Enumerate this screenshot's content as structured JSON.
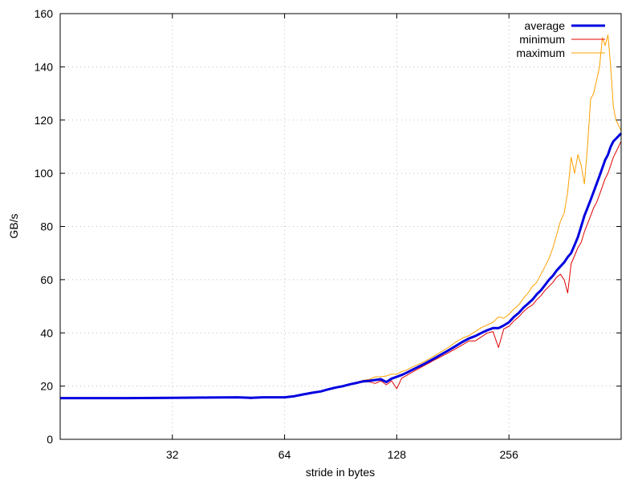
{
  "chart_data": {
    "type": "line",
    "xlabel": "stride in bytes",
    "ylabel": "GB/s",
    "x_scale": "log2",
    "xlim": [
      16,
      512
    ],
    "ylim": [
      0,
      160
    ],
    "x_ticks": [
      32,
      64,
      128,
      256
    ],
    "y_ticks": [
      0,
      20,
      40,
      60,
      80,
      100,
      120,
      140,
      160
    ],
    "grid": true,
    "legend": "top-right",
    "series": [
      {
        "name": "average",
        "color": "#0000e0",
        "line_width": 3,
        "x": [
          16,
          24,
          32,
          40,
          48,
          52,
          56,
          60,
          64,
          68,
          72,
          76,
          80,
          84,
          88,
          92,
          96,
          100,
          104,
          108,
          112,
          116,
          120,
          124,
          128,
          132,
          136,
          140,
          144,
          148,
          152,
          156,
          160,
          168,
          176,
          184,
          192,
          200,
          208,
          216,
          224,
          232,
          240,
          248,
          256,
          264,
          272,
          280,
          288,
          296,
          304,
          312,
          320,
          328,
          336,
          344,
          352,
          360,
          368,
          376,
          384,
          392,
          400,
          408,
          416,
          424,
          432,
          440,
          448,
          456,
          464,
          472,
          480,
          488,
          496,
          504,
          512
        ],
        "values": [
          15.5,
          15.5,
          15.6,
          15.7,
          15.8,
          15.6,
          15.8,
          15.8,
          15.8,
          16.2,
          16.9,
          17.5,
          18.0,
          18.8,
          19.5,
          20.0,
          20.7,
          21.2,
          21.8,
          22.0,
          22.3,
          22.6,
          21.5,
          22.8,
          23.5,
          24.2,
          25.0,
          25.9,
          26.8,
          27.6,
          28.4,
          29.3,
          30.1,
          31.8,
          33.4,
          35.0,
          36.6,
          37.9,
          38.8,
          40.0,
          41.0,
          41.8,
          41.8,
          42.8,
          44.0,
          46.0,
          47.5,
          49.5,
          51.0,
          52.5,
          54.5,
          56.0,
          58.0,
          60.0,
          61.5,
          63.5,
          65.0,
          66.5,
          68.5,
          70.0,
          73.0,
          76.0,
          80.0,
          84.0,
          87.0,
          90.0,
          93.0,
          96.0,
          99.0,
          102.0,
          105.0,
          107.0,
          110.0,
          112.0,
          113.0,
          114.0,
          115.0
        ]
      },
      {
        "name": "minimum",
        "color": "#e00000",
        "line_width": 1,
        "x": [
          16,
          24,
          32,
          40,
          48,
          52,
          56,
          60,
          64,
          68,
          72,
          76,
          80,
          84,
          88,
          92,
          96,
          100,
          104,
          108,
          112,
          116,
          120,
          124,
          128,
          132,
          136,
          140,
          144,
          148,
          152,
          156,
          160,
          168,
          176,
          184,
          192,
          200,
          208,
          216,
          224,
          232,
          240,
          248,
          256,
          264,
          272,
          280,
          288,
          296,
          304,
          312,
          320,
          328,
          336,
          344,
          352,
          360,
          368,
          376,
          384,
          392,
          400,
          408,
          416,
          424,
          432,
          440,
          448,
          456,
          464,
          472,
          480,
          488,
          496,
          504,
          512
        ],
        "values": [
          15.4,
          15.4,
          15.5,
          15.6,
          15.7,
          15.3,
          15.7,
          15.7,
          15.7,
          16.0,
          16.7,
          17.3,
          17.8,
          18.6,
          19.3,
          19.8,
          20.5,
          21.0,
          21.5,
          21.6,
          21.0,
          22.0,
          20.5,
          22.0,
          19.0,
          23.0,
          24.0,
          25.0,
          26.0,
          26.9,
          27.8,
          28.6,
          29.5,
          31.0,
          32.5,
          34.0,
          35.5,
          37.0,
          37.0,
          38.5,
          40.0,
          40.5,
          34.5,
          41.5,
          42.5,
          44.5,
          46.0,
          48.0,
          49.5,
          50.5,
          52.5,
          54.0,
          56.0,
          57.5,
          59.0,
          61.0,
          62.0,
          60.0,
          55.0,
          66.0,
          69.0,
          72.0,
          74.0,
          78.0,
          81.0,
          84.0,
          87.0,
          89.0,
          92.0,
          95.0,
          98.0,
          100.0,
          103.0,
          106.0,
          108.0,
          110.0,
          112.0
        ]
      },
      {
        "name": "maximum",
        "color": "#ffa000",
        "line_width": 1,
        "x": [
          16,
          24,
          32,
          40,
          48,
          52,
          56,
          60,
          64,
          68,
          72,
          76,
          80,
          84,
          88,
          92,
          96,
          100,
          104,
          108,
          112,
          116,
          120,
          124,
          128,
          132,
          136,
          140,
          144,
          148,
          152,
          156,
          160,
          168,
          176,
          184,
          192,
          200,
          208,
          216,
          224,
          232,
          240,
          248,
          256,
          264,
          272,
          280,
          288,
          296,
          304,
          312,
          320,
          328,
          336,
          344,
          352,
          360,
          368,
          376,
          384,
          392,
          400,
          408,
          416,
          424,
          432,
          440,
          448,
          456,
          464,
          472,
          480,
          488,
          496,
          504,
          512
        ],
        "values": [
          15.6,
          15.6,
          15.7,
          15.8,
          15.9,
          15.8,
          15.9,
          15.9,
          15.9,
          16.4,
          17.1,
          17.7,
          18.2,
          19.0,
          19.7,
          20.2,
          20.9,
          21.5,
          22.2,
          22.5,
          23.5,
          23.5,
          23.8,
          24.5,
          24.5,
          25.5,
          26.0,
          27.0,
          27.8,
          28.5,
          29.3,
          30.2,
          31.0,
          32.8,
          34.5,
          36.5,
          38.0,
          39.0,
          40.5,
          42.0,
          43.0,
          44.0,
          46.0,
          45.5,
          47.0,
          49.0,
          50.5,
          53.0,
          55.0,
          57.5,
          59.0,
          62.0,
          65.0,
          68.0,
          72.0,
          77.0,
          82.0,
          85.0,
          93.0,
          106.0,
          100.0,
          107.0,
          103.0,
          96.0,
          110.0,
          128.0,
          130.0,
          135.0,
          140.0,
          151.0,
          148.0,
          152.0,
          140.0,
          125.0,
          120.0,
          118.0,
          116.0
        ]
      }
    ]
  }
}
